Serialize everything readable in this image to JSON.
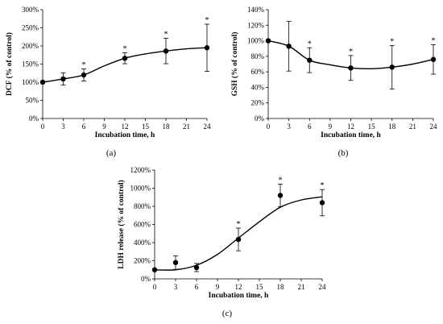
{
  "chart_data": [
    {
      "type": "line",
      "panel_label": "(a)",
      "xlabel": "Incubation time, h",
      "ylabel": "DCF (% of control)",
      "x_ticks": [
        0,
        3,
        6,
        9,
        12,
        15,
        18,
        21,
        24
      ],
      "y_ticks": [
        0,
        50,
        100,
        150,
        200,
        250,
        300
      ],
      "y_tick_labels": [
        "0%",
        "50%",
        "100%",
        "150%",
        "200%",
        "250%",
        "300%"
      ],
      "xlim": [
        0,
        24
      ],
      "ylim": [
        0,
        300
      ],
      "points": [
        {
          "x": 0,
          "y": 100,
          "err": 0,
          "star": ""
        },
        {
          "x": 3,
          "y": 109,
          "err": 17,
          "star": ""
        },
        {
          "x": 6,
          "y": 120,
          "err": 17,
          "star": "*"
        },
        {
          "x": 12,
          "y": 166,
          "err": 15,
          "star": "*"
        },
        {
          "x": 18,
          "y": 186,
          "err": 35,
          "star": "*"
        },
        {
          "x": 24,
          "y": 195,
          "err": 65,
          "star": "*"
        }
      ],
      "fit": [
        [
          0,
          100
        ],
        [
          3,
          109
        ],
        [
          6,
          120
        ],
        [
          9,
          145
        ],
        [
          12,
          166
        ],
        [
          15,
          178
        ],
        [
          18,
          186
        ],
        [
          21,
          192
        ],
        [
          24,
          195
        ]
      ]
    },
    {
      "type": "line",
      "panel_label": "(b)",
      "xlabel": "Incubation time, h",
      "ylabel": "GSH (% of control)",
      "x_ticks": [
        0,
        3,
        6,
        9,
        12,
        15,
        18,
        21,
        24
      ],
      "y_ticks": [
        0,
        20,
        40,
        60,
        80,
        100,
        120,
        140
      ],
      "y_tick_labels": [
        "0%",
        "20%",
        "40%",
        "60%",
        "80%",
        "100%",
        "120%",
        "140%"
      ],
      "xlim": [
        0,
        24
      ],
      "ylim": [
        0,
        140
      ],
      "points": [
        {
          "x": 0,
          "y": 100,
          "err": 0,
          "star": ""
        },
        {
          "x": 3,
          "y": 93,
          "err": 32,
          "star": ""
        },
        {
          "x": 6,
          "y": 75,
          "err": 16,
          "star": "*"
        },
        {
          "x": 12,
          "y": 65,
          "err": 16,
          "star": "*"
        },
        {
          "x": 18,
          "y": 66,
          "err": 28,
          "star": "*"
        },
        {
          "x": 24,
          "y": 76,
          "err": 19,
          "star": "*"
        }
      ],
      "fit": [
        [
          0,
          100
        ],
        [
          3,
          93
        ],
        [
          6,
          75
        ],
        [
          9,
          69
        ],
        [
          12,
          65
        ],
        [
          15,
          64
        ],
        [
          18,
          66
        ],
        [
          21,
          70
        ],
        [
          24,
          76
        ]
      ]
    },
    {
      "type": "line",
      "panel_label": "(c)",
      "xlabel": "Incubation time, h",
      "ylabel": "LDH release (% of control)",
      "x_ticks": [
        0,
        3,
        6,
        9,
        12,
        15,
        18,
        21,
        24
      ],
      "y_ticks": [
        0,
        200,
        400,
        600,
        800,
        1000,
        1200
      ],
      "y_tick_labels": [
        "0%",
        "200%",
        "400%",
        "600%",
        "800%",
        "1000%",
        "1200%"
      ],
      "xlim": [
        0,
        24
      ],
      "ylim": [
        0,
        1200
      ],
      "points": [
        {
          "x": 0,
          "y": 100,
          "err": 0,
          "star": ""
        },
        {
          "x": 3,
          "y": 180,
          "err": 75,
          "star": ""
        },
        {
          "x": 6,
          "y": 125,
          "err": 45,
          "star": ""
        },
        {
          "x": 12,
          "y": 435,
          "err": 125,
          "star": "*"
        },
        {
          "x": 18,
          "y": 920,
          "err": 125,
          "star": "*"
        },
        {
          "x": 24,
          "y": 840,
          "err": 145,
          "star": "*"
        }
      ],
      "fit": [
        [
          0,
          100
        ],
        [
          3,
          100
        ],
        [
          6,
          150
        ],
        [
          9,
          270
        ],
        [
          12,
          450
        ],
        [
          15,
          630
        ],
        [
          18,
          790
        ],
        [
          21,
          870
        ],
        [
          24,
          905
        ]
      ]
    }
  ]
}
